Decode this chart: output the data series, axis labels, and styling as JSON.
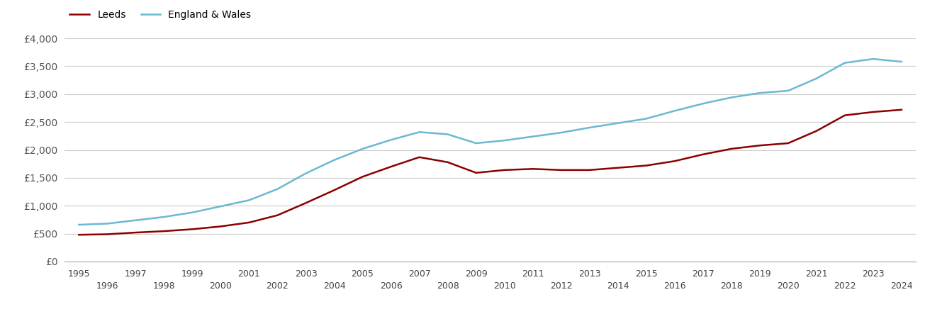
{
  "title": "",
  "legend_labels": [
    "Leeds",
    "England & Wales"
  ],
  "leeds_color": "#8B0000",
  "england_color": "#6BB8D4",
  "background_color": "#ffffff",
  "grid_color": "#cccccc",
  "ylim": [
    0,
    4000
  ],
  "yticks": [
    0,
    500,
    1000,
    1500,
    2000,
    2500,
    3000,
    3500,
    4000
  ],
  "years": [
    1995,
    1996,
    1997,
    1998,
    1999,
    2000,
    2001,
    2002,
    2003,
    2004,
    2005,
    2006,
    2007,
    2008,
    2009,
    2010,
    2011,
    2012,
    2013,
    2014,
    2015,
    2016,
    2017,
    2018,
    2019,
    2020,
    2021,
    2022,
    2023,
    2024
  ],
  "leeds": [
    480,
    490,
    520,
    545,
    580,
    630,
    700,
    830,
    1050,
    1280,
    1520,
    1700,
    1870,
    1780,
    1590,
    1640,
    1660,
    1640,
    1640,
    1680,
    1720,
    1800,
    1920,
    2020,
    2080,
    2120,
    2340,
    2620,
    2680,
    2720
  ],
  "england": [
    660,
    680,
    740,
    800,
    880,
    990,
    1100,
    1300,
    1580,
    1820,
    2020,
    2180,
    2320,
    2280,
    2120,
    2170,
    2240,
    2310,
    2400,
    2480,
    2560,
    2700,
    2830,
    2940,
    3020,
    3060,
    3280,
    3560,
    3630,
    3580
  ],
  "xlim": [
    1994.5,
    2024.5
  ],
  "odd_years": [
    1995,
    1997,
    1999,
    2001,
    2003,
    2005,
    2007,
    2009,
    2011,
    2013,
    2015,
    2017,
    2019,
    2021,
    2023
  ],
  "even_years": [
    1996,
    1998,
    2000,
    2002,
    2004,
    2006,
    2008,
    2010,
    2012,
    2014,
    2016,
    2018,
    2020,
    2022,
    2024
  ]
}
